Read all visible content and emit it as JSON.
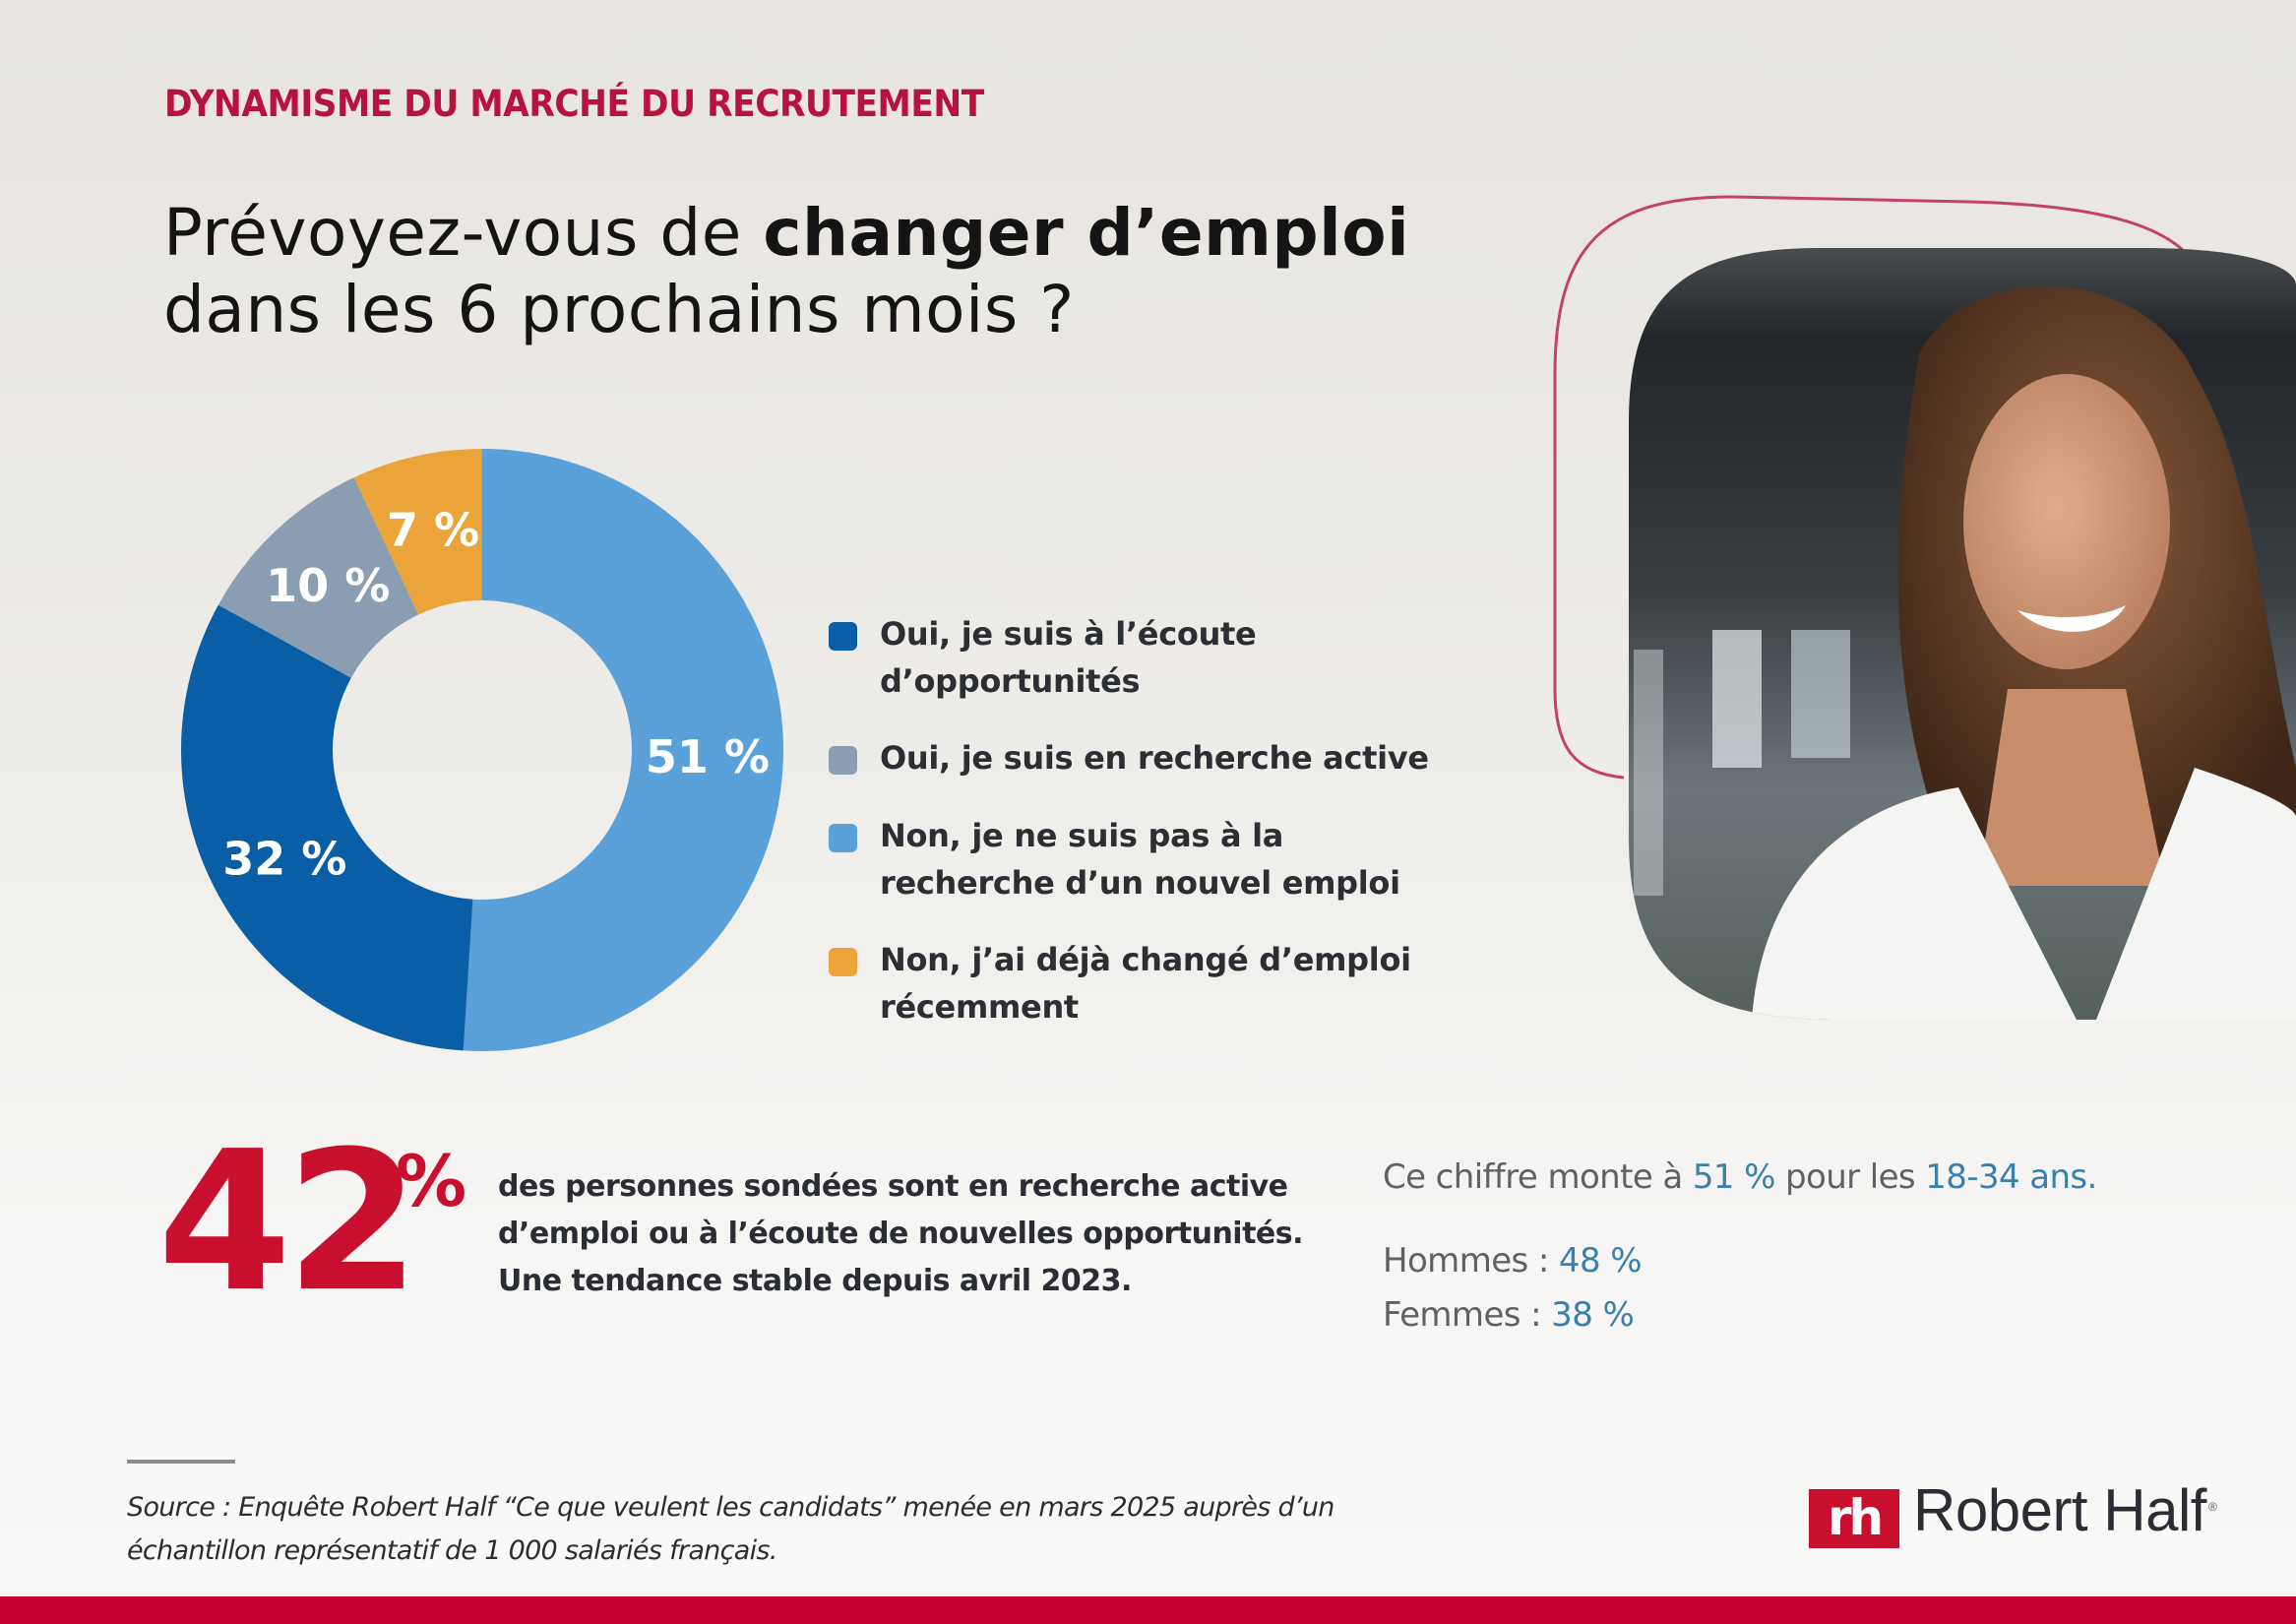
{
  "header": {
    "kicker": "DYNAMISME DU MARCHÉ DU RECRUTEMENT",
    "title_part1": "Prévoyez-vous de ",
    "title_bold": "changer d’emploi",
    "title_part2": "dans les 6 prochains mois ?"
  },
  "colors": {
    "brand_red": "#c8102e",
    "dark_blue": "#0a5ea5",
    "gray_blue": "#8a9db1",
    "light_blue": "#5aa0d9",
    "orange": "#eba43a",
    "accent_blue_text": "#3a80aa"
  },
  "chart_data": {
    "type": "pie",
    "variant": "donut",
    "title": "Prévoyez-vous de changer d’emploi dans les 6 prochains mois ?",
    "unit": "%",
    "slices": [
      {
        "label": "Non, je ne suis pas à la recherche d’un nouvel emploi",
        "value": 51,
        "display": "51 %",
        "color": "#5aa0d9"
      },
      {
        "label": "Oui, je suis à l’écoute d’opportunités",
        "value": 32,
        "display": "32 %",
        "color": "#0a5ea5"
      },
      {
        "label": "Oui, je suis en recherche active",
        "value": 10,
        "display": "10 %",
        "color": "#8a9db1"
      },
      {
        "label": "Non, j’ai déjà changé d’emploi récemment",
        "value": 7,
        "display": "7 %",
        "color": "#eba43a"
      }
    ],
    "start_angle_deg": 0,
    "direction": "clockwise",
    "legend_placement": "right"
  },
  "legend": {
    "items": [
      {
        "label": "Oui, je suis à l’écoute\nd’opportunités",
        "color": "#0a5ea5"
      },
      {
        "label": "Oui, je suis en recherche active",
        "color": "#8a9db1"
      },
      {
        "label": "Non, je ne suis pas à la\nrecherche d’un nouvel emploi",
        "color": "#5aa0d9"
      },
      {
        "label": "Non, j’ai déjà changé d’emploi\nrécemment",
        "color": "#eba43a"
      }
    ]
  },
  "highlight": {
    "value": "42",
    "unit": "%",
    "lines": [
      "des personnes sondées sont en recherche active",
      "d’emploi ou à l’écoute de nouvelles opportunités.",
      "Une tendance stable depuis avril 2023."
    ]
  },
  "breakdown": {
    "intro_a": "Ce chiffre monte à ",
    "intro_value": "51 %",
    "intro_b": " pour les ",
    "intro_age": "18-34 ans.",
    "men_label": "Hommes : ",
    "men_value": "48 %",
    "women_label": "Femmes : ",
    "women_value": "38 %"
  },
  "footer": {
    "source_line1": "Source : Enquête Robert Half “Ce que veulent les candidats” menée en mars 2025 auprès d’un",
    "source_line2": "échantillon représentatif de 1 000 salariés français.",
    "logo_mark": "rh",
    "logo_text": "Robert Half",
    "logo_reg": "®"
  }
}
